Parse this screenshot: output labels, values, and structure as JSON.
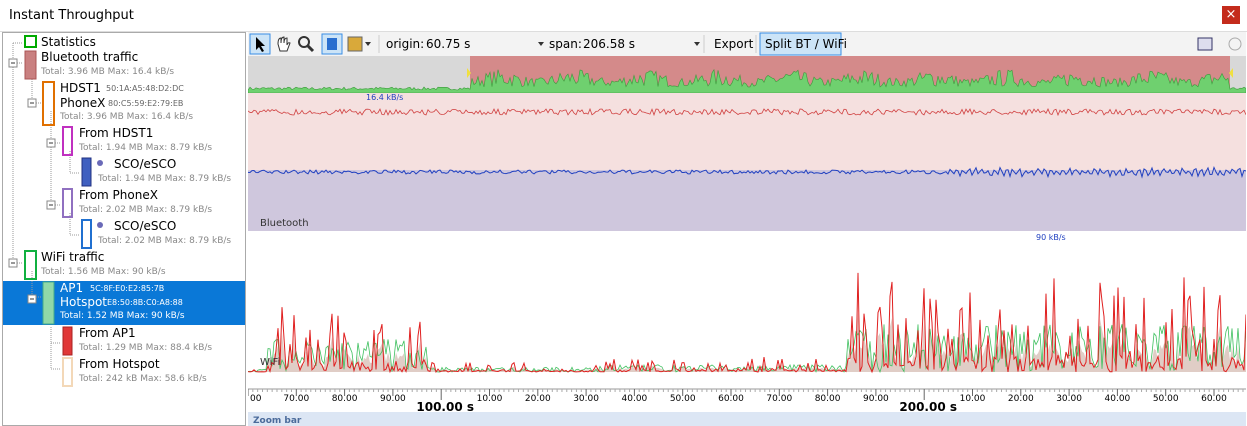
{
  "window": {
    "title": "Instant Throughput",
    "close": "×"
  },
  "tree": [
    {
      "label": "Statistics"
    },
    {
      "label": "Bluetooth traffic",
      "detail": "Total: 3.96 MB Max: 16.4 kB/s"
    },
    {
      "label": "HDST1",
      "address": "50:1A:A5:48:D2:DC",
      "label2": "PhoneX",
      "address2": "80:C5:59:E2:79:EB",
      "detail": "Total: 3.96 MB Max: 16.4 kB/s"
    },
    {
      "label": "From HDST1",
      "detail": "Total: 1.94 MB Max: 8.79 kB/s"
    },
    {
      "label": "SCO/eSCO",
      "detail": "Total: 1.94 MB Max: 8.79 kB/s"
    },
    {
      "label": "From PhoneX",
      "detail": "Total: 2.02 MB Max: 8.79 kB/s"
    },
    {
      "label": "SCO/eSCO",
      "detail": "Total: 2.02 MB Max: 8.79 kB/s"
    },
    {
      "label": "WiFi traffic",
      "detail": "Total: 1.56 MB Max: 90 kB/s"
    },
    {
      "label": "AP1",
      "address": "5C:8F:E0:E2:85:7B",
      "label2": "Hotspot",
      "address2": "E8:50:8B:C0:A8:88",
      "detail": "Total: 1.52 MB Max: 90 kB/s"
    },
    {
      "label": "From AP1",
      "detail": "Total: 1.29 MB Max: 88.4 kB/s"
    },
    {
      "label": "From Hotspot",
      "detail": "Total: 242 kB Max: 58.6 kB/s"
    }
  ],
  "toolbar": {
    "origin_label": "origin:",
    "origin": "60.75 s",
    "span_label": "span:",
    "span": "206.58 s",
    "export": "Export",
    "split": "Split BT / WiFi"
  },
  "chart": {
    "bt_max": "16.4 kB/s",
    "bt_label": "Bluetooth",
    "wifi_max": "90 kB/s",
    "wifi_label": "WiFi",
    "minor_labels": [
      "00",
      "70.00",
      "80.00",
      "90.00",
      "10.00",
      "20.00",
      "30.00",
      "40.00",
      "50.00",
      "60.00",
      "70.00",
      "80.00",
      "90.00",
      "10.00",
      "20.00",
      "30.00",
      "40.00",
      "50.00",
      "60.00"
    ],
    "major_labels": [
      "100.00 s",
      "200.00 s"
    ],
    "zoom_bar": "Zoom bar"
  }
}
